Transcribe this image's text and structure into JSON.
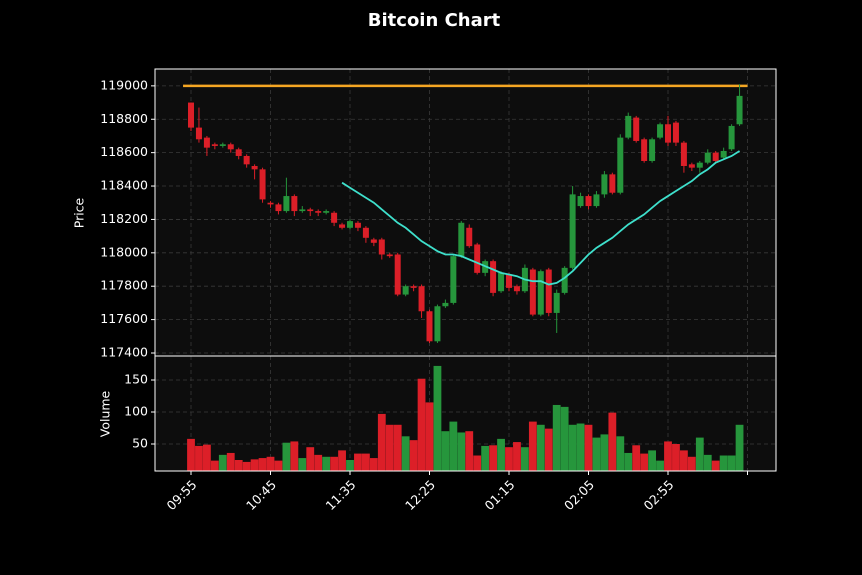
{
  "chart_data": {
    "type": "candlestick",
    "title": "Bitcoin Chart",
    "ylabel": "Price",
    "volume_label": "Volume",
    "categories": [
      "09:55",
      null,
      null,
      null,
      null,
      null,
      null,
      null,
      null,
      null,
      "10:45",
      null,
      null,
      null,
      null,
      null,
      null,
      null,
      null,
      null,
      "11:35",
      null,
      null,
      null,
      null,
      null,
      null,
      null,
      null,
      null,
      "12:25",
      null,
      null,
      null,
      null,
      null,
      null,
      null,
      null,
      null,
      "01:15",
      null,
      null,
      null,
      null,
      null,
      null,
      null,
      null,
      null,
      "02:05",
      null,
      null,
      null,
      null,
      null,
      null,
      null,
      null,
      null,
      "02:55",
      null,
      null,
      null,
      null,
      null,
      null,
      null,
      null,
      null
    ],
    "xticks": [
      0,
      10,
      20,
      30,
      40,
      50,
      60,
      70
    ],
    "open": [
      118900,
      118750,
      118690,
      118650,
      118640,
      118650,
      118620,
      118580,
      118520,
      118500,
      118300,
      118290,
      118250,
      118340,
      118250,
      118260,
      118250,
      118240,
      118240,
      118170,
      118150,
      118180,
      118150,
      118080,
      118080,
      117990,
      117990,
      117750,
      117800,
      117800,
      117650,
      117470,
      117680,
      117700,
      117980,
      118150,
      118050,
      117880,
      117950,
      117770,
      117870,
      117800,
      117770,
      117900,
      117630,
      117900,
      117640,
      117760,
      117910,
      118280,
      118340,
      118280,
      118350,
      118470,
      118360,
      118690,
      118810,
      118680,
      118550,
      118690,
      118770,
      118780,
      118660,
      118530,
      118510,
      118540,
      118600,
      118570,
      118620,
      118770
    ],
    "high": [
      118900,
      118870,
      118700,
      118660,
      118660,
      118660,
      118630,
      118590,
      118530,
      118510,
      118310,
      118300,
      118450,
      118350,
      118280,
      118270,
      118260,
      118260,
      118250,
      118180,
      118200,
      118190,
      118160,
      118090,
      118090,
      118000,
      118000,
      117810,
      117810,
      117810,
      117660,
      117690,
      117720,
      117990,
      118190,
      118170,
      118060,
      117960,
      117960,
      117890,
      117880,
      117810,
      117930,
      117910,
      117900,
      117910,
      117780,
      117920,
      118400,
      118360,
      118350,
      118370,
      118490,
      118480,
      118710,
      118840,
      118820,
      118690,
      118690,
      118780,
      118820,
      118790,
      118670,
      118540,
      118550,
      118620,
      118610,
      118630,
      118770,
      119010
    ],
    "low": [
      118730,
      118660,
      118580,
      118620,
      118630,
      118600,
      118560,
      118510,
      118440,
      118300,
      118270,
      118230,
      118240,
      118220,
      118240,
      118220,
      118220,
      118230,
      118160,
      118140,
      118140,
      118130,
      118060,
      118040,
      117960,
      117970,
      117740,
      117740,
      117770,
      117610,
      117460,
      117460,
      117670,
      117690,
      117970,
      118030,
      117870,
      117860,
      117740,
      117760,
      117770,
      117750,
      117760,
      117620,
      117620,
      117620,
      117520,
      117750,
      117900,
      118270,
      118260,
      118270,
      118330,
      118350,
      118350,
      118680,
      118660,
      118540,
      118540,
      118680,
      118640,
      118640,
      118480,
      118490,
      118480,
      118530,
      118540,
      118560,
      118610,
      118760
    ],
    "close": [
      118750,
      118680,
      118630,
      118640,
      118650,
      118620,
      118580,
      118530,
      118500,
      118320,
      118290,
      118250,
      118340,
      118250,
      118260,
      118250,
      118240,
      118250,
      118180,
      118150,
      118190,
      118150,
      118090,
      118060,
      117990,
      117980,
      117750,
      117800,
      117790,
      117650,
      117470,
      117680,
      117700,
      117980,
      118180,
      118040,
      117880,
      117950,
      117760,
      117880,
      117790,
      117770,
      117910,
      117630,
      117890,
      117640,
      117760,
      117910,
      118350,
      118340,
      118280,
      118350,
      118470,
      118360,
      118690,
      118820,
      118670,
      118550,
      118680,
      118770,
      118660,
      118660,
      118520,
      118510,
      118540,
      118600,
      118550,
      118610,
      118760,
      118940
    ],
    "volume": [
      58,
      47,
      49,
      24,
      33,
      36,
      25,
      22,
      26,
      28,
      30,
      24,
      52,
      54,
      28,
      45,
      33,
      30,
      30,
      40,
      25,
      35,
      35,
      28,
      97,
      80,
      80,
      62,
      56,
      152,
      115,
      172,
      70,
      85,
      68,
      70,
      32,
      47,
      48,
      58,
      45,
      53,
      45,
      85,
      80,
      74,
      111,
      108,
      80,
      82,
      80,
      60,
      65,
      99,
      62,
      36,
      48,
      35,
      40,
      24,
      54,
      50,
      40,
      30,
      60,
      33,
      24,
      32,
      32,
      80
    ],
    "ma": [
      null,
      null,
      null,
      null,
      null,
      null,
      null,
      null,
      null,
      null,
      null,
      null,
      null,
      null,
      null,
      null,
      null,
      null,
      null,
      118420,
      118390,
      118360,
      118330,
      118300,
      118260,
      118220,
      118180,
      118150,
      118110,
      118070,
      118040,
      118010,
      117990,
      117990,
      117980,
      117960,
      117940,
      117920,
      117900,
      117880,
      117870,
      117860,
      117840,
      117830,
      117830,
      117810,
      117820,
      117850,
      117890,
      117940,
      117990,
      118030,
      118060,
      118090,
      118130,
      118170,
      118200,
      118230,
      118270,
      118310,
      118340,
      118370,
      118400,
      118430,
      118470,
      118500,
      118540,
      118560,
      118580,
      118610
    ],
    "ma_color": "#3ee0cc",
    "hline": 119000,
    "hline_color": "#f5a623",
    "up_color": "#26963c",
    "down_color": "#dc1f28",
    "ylim": [
      117382,
      119101
    ],
    "yticks": [
      117400,
      117600,
      117800,
      118000,
      118200,
      118400,
      118600,
      118800,
      119000
    ],
    "volume_ylim": [
      7.8,
      187.5
    ],
    "volume_yticks": [
      50,
      100,
      150
    ],
    "grid": true
  }
}
